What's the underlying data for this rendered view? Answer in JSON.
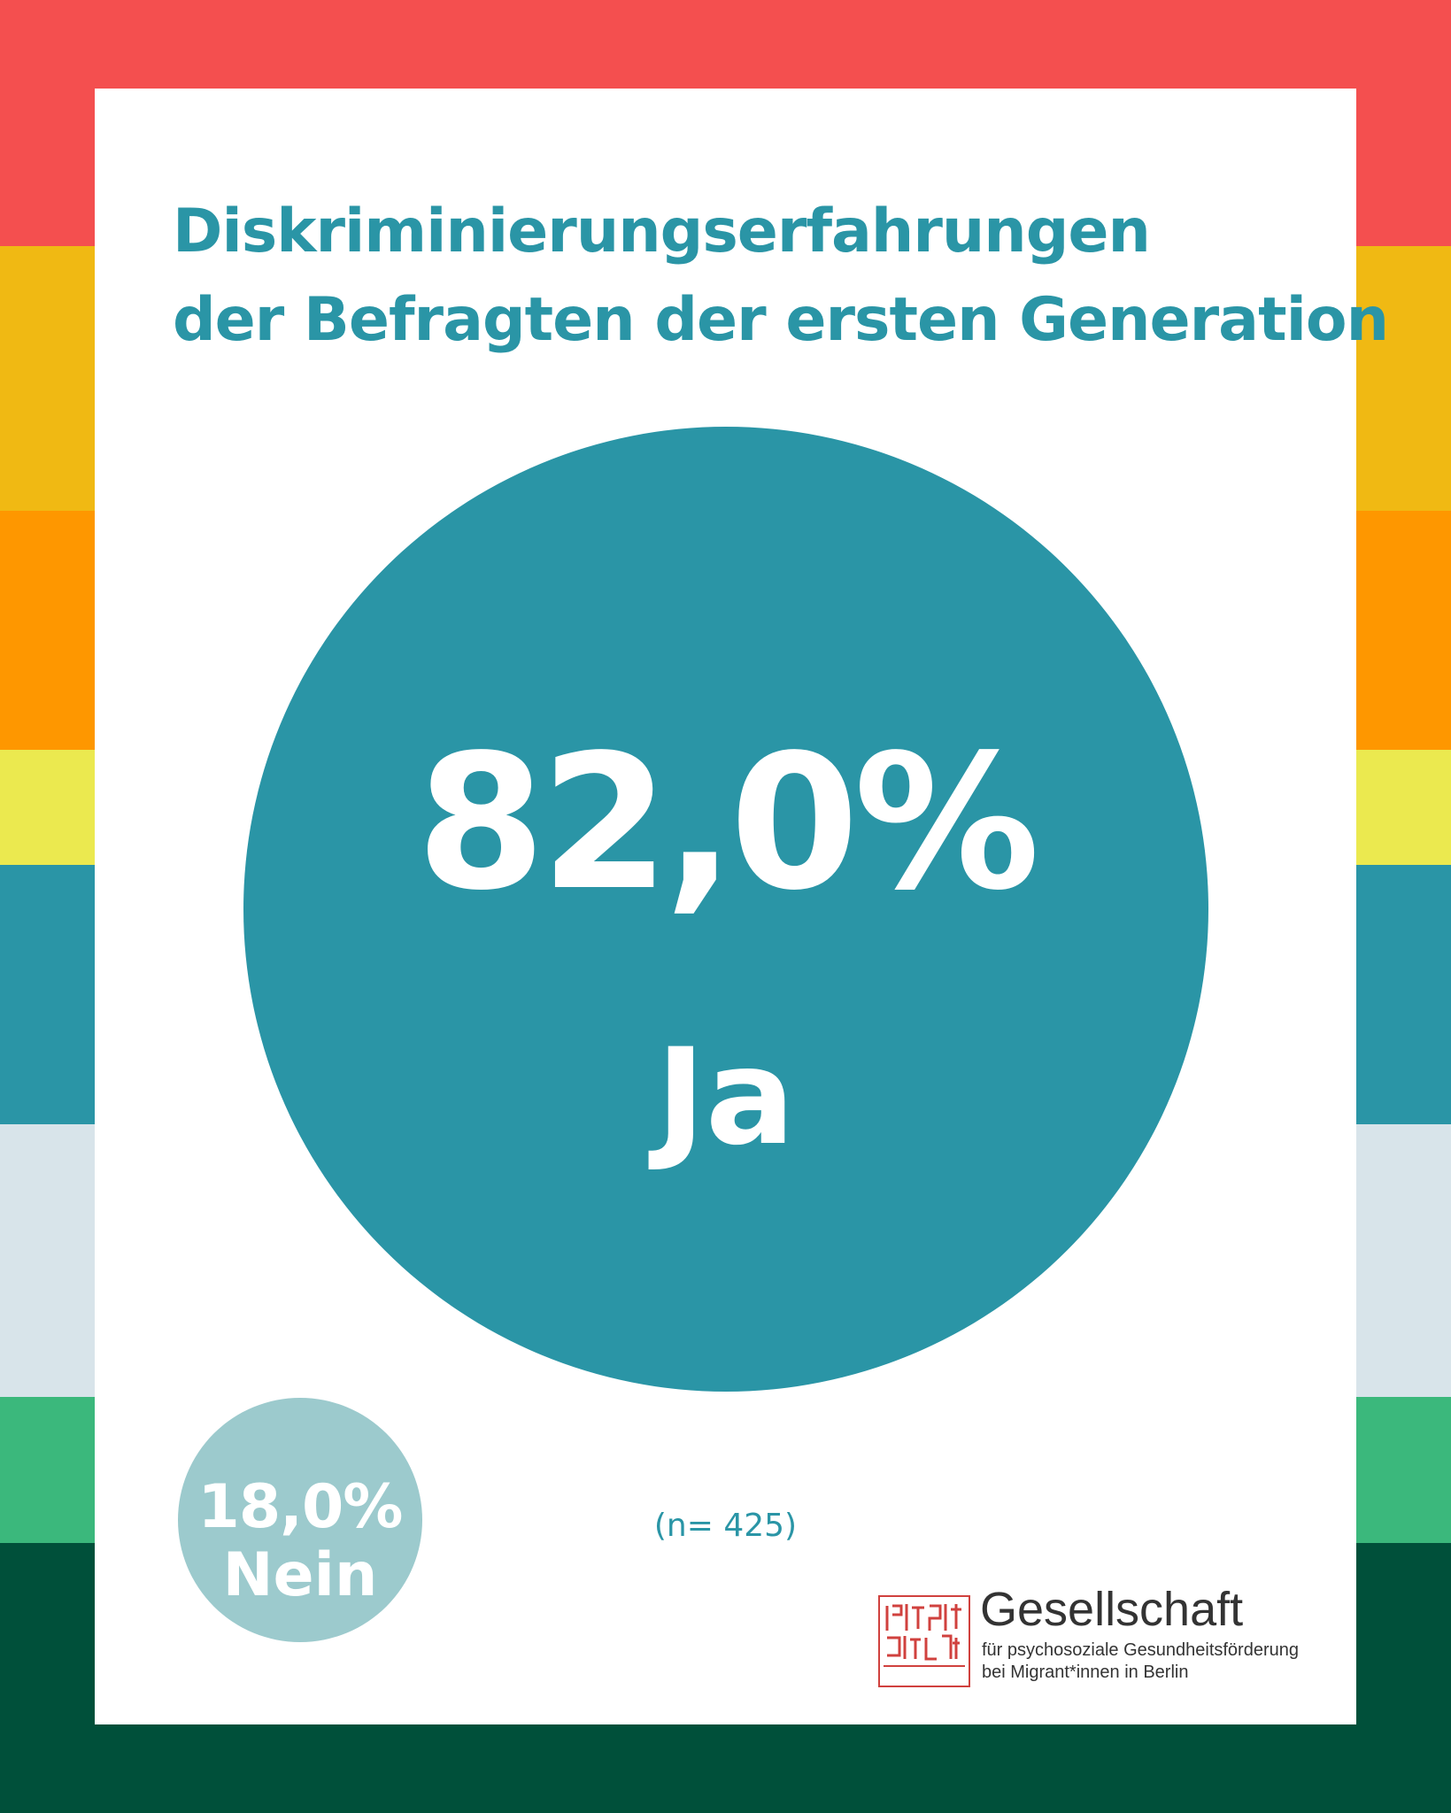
{
  "stripes": [
    {
      "color": "#f44f4f"
    },
    {
      "color": "#f0b913"
    },
    {
      "color": "#fe9700"
    },
    {
      "color": "#ebe94f"
    },
    {
      "color": "#2a95a6"
    },
    {
      "color": "#d8e4ea"
    },
    {
      "color": "#3bb87c"
    },
    {
      "color": "#00503a"
    }
  ],
  "title": {
    "line1": "Diskriminierungserfahrungen",
    "line2": "der Befragten der ersten Generation"
  },
  "chart_data": {
    "type": "bubble",
    "title": "Diskriminierungserfahrungen der Befragten der ersten Generation",
    "series": [
      {
        "name": "Ja",
        "value": 82.0,
        "display": "82,0%",
        "color": "#2a95a6"
      },
      {
        "name": "Nein",
        "value": 18.0,
        "display": "18,0%",
        "color": "#9ccacd"
      }
    ],
    "sample_size_label": "(n= 425)",
    "n": 425
  },
  "logo": {
    "name": "Gesellschaft",
    "line1": "für psychosoziale Gesundheitsförderung",
    "line2": "bei Migrant*innen in Berlin",
    "seal_text": "GePGeMi e.V.",
    "seal_color": "#d0413e"
  }
}
